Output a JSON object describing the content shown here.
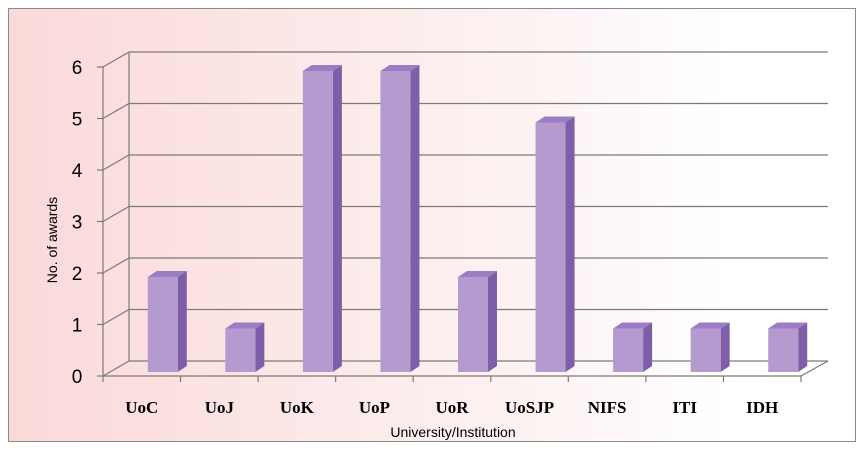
{
  "chart_data": {
    "type": "bar",
    "title": "",
    "xlabel": "University/Institution",
    "ylabel": "No. of awards",
    "categories": [
      "UoC",
      "UoJ",
      "UoK",
      "UoP",
      "UoR",
      "UoSJP",
      "NIFS",
      "ITI",
      "IDH"
    ],
    "values": [
      2,
      1,
      6,
      6,
      2,
      5,
      1,
      1,
      1
    ],
    "ylim": [
      0,
      6
    ],
    "yticks": [
      0,
      1,
      2,
      3,
      4,
      5,
      6
    ],
    "grid": true,
    "legend": "none",
    "style": "3d-column",
    "colors": {
      "bar_front": "#b59ad0",
      "bar_side": "#7e5ea8",
      "bar_top": "#9c7cc2",
      "grid": "#7a7a7a"
    }
  }
}
